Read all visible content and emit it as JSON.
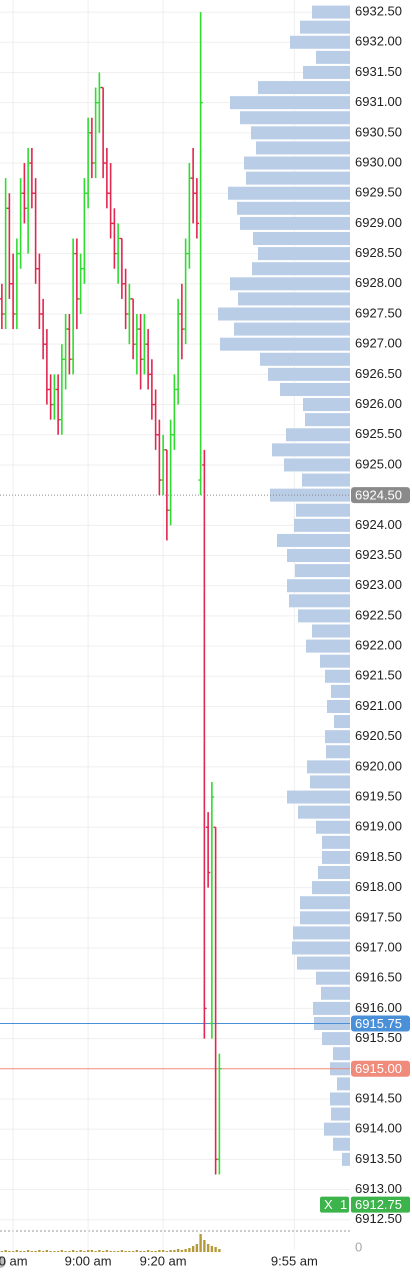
{
  "chart_data": {
    "type": "ohlc",
    "up_color": "#2fdc2f",
    "down_color": "#e2264f",
    "grid": true,
    "xlim": [
      "8:36:30",
      "10:09:50"
    ],
    "xticks": [
      {
        "value": "8:40",
        "label": "0 am"
      },
      {
        "value": "9:00",
        "label": "9:00 am"
      },
      {
        "value": "9:20",
        "label": "9:20 am"
      },
      {
        "value": "9:55",
        "label": "9:55 am"
      }
    ],
    "ylim": [
      6912.33,
      6932.7
    ],
    "yticks": [
      {
        "value": 6932.5,
        "label": "6932.50"
      },
      {
        "value": 6932,
        "label": "6932.00"
      },
      {
        "value": 6931.5,
        "label": "6931.50"
      },
      {
        "value": 6931,
        "label": "6931.00"
      },
      {
        "value": 6930.5,
        "label": "6930.50"
      },
      {
        "value": 6930,
        "label": "6930.00"
      },
      {
        "value": 6929.5,
        "label": "6929.50"
      },
      {
        "value": 6929,
        "label": "6929.00"
      },
      {
        "value": 6928.5,
        "label": "6928.50"
      },
      {
        "value": 6928,
        "label": "6928.00"
      },
      {
        "value": 6927.5,
        "label": "6927.50"
      },
      {
        "value": 6927,
        "label": "6927.00"
      },
      {
        "value": 6926.5,
        "label": "6926.50"
      },
      {
        "value": 6926,
        "label": "6926.00"
      },
      {
        "value": 6925.5,
        "label": "6925.50"
      },
      {
        "value": 6925,
        "label": "6925.00"
      },
      {
        "value": 6924,
        "label": "6924.00"
      },
      {
        "value": 6923.5,
        "label": "6923.50"
      },
      {
        "value": 6923,
        "label": "6923.00"
      },
      {
        "value": 6922.5,
        "label": "6922.50"
      },
      {
        "value": 6922,
        "label": "6922.00"
      },
      {
        "value": 6921.5,
        "label": "6921.50"
      },
      {
        "value": 6921,
        "label": "6921.00"
      },
      {
        "value": 6920.5,
        "label": "6920.50"
      },
      {
        "value": 6920,
        "label": "6920.00"
      },
      {
        "value": 6919.5,
        "label": "6919.50"
      },
      {
        "value": 6919,
        "label": "6919.00"
      },
      {
        "value": 6918.5,
        "label": "6918.50"
      },
      {
        "value": 6918,
        "label": "6918.00"
      },
      {
        "value": 6917.5,
        "label": "6917.50"
      },
      {
        "value": 6917,
        "label": "6917.00"
      },
      {
        "value": 6916.5,
        "label": "6916.50"
      },
      {
        "value": 6916,
        "label": "6916.00"
      },
      {
        "value": 6915.5,
        "label": "6915.50"
      },
      {
        "value": 6914.5,
        "label": "6914.50"
      },
      {
        "value": 6914,
        "label": "6914.00"
      },
      {
        "value": 6913.5,
        "label": "6913.50"
      },
      {
        "value": 6913,
        "label": "6913.00"
      },
      {
        "value": 6912.5,
        "label": "6912.50"
      }
    ],
    "x": [
      "8:37",
      "8:38",
      "8:39",
      "8:40",
      "8:41",
      "8:42",
      "8:43",
      "8:44",
      "8:45",
      "8:46",
      "8:47",
      "8:48",
      "8:49",
      "8:50",
      "8:51",
      "8:52",
      "8:53",
      "8:54",
      "8:55",
      "8:56",
      "8:57",
      "8:58",
      "8:59",
      "9:00",
      "9:01",
      "9:02",
      "9:03",
      "9:04",
      "9:05",
      "9:06",
      "9:07",
      "9:08",
      "9:09",
      "9:10",
      "9:11",
      "9:12",
      "9:13",
      "9:14",
      "9:15",
      "9:16",
      "9:17",
      "9:18",
      "9:19",
      "9:20",
      "9:21",
      "9:22",
      "9:23",
      "9:24",
      "9:25",
      "9:26",
      "9:27",
      "9:28",
      "9:29",
      "9:30",
      "9:31",
      "9:32",
      "9:33",
      "9:34",
      "9:35"
    ],
    "open": [
      6927.75,
      6927.5,
      6929.25,
      6928,
      6927.5,
      6928.5,
      6929.5,
      6929.25,
      6930,
      6929.5,
      6928.25,
      6927.5,
      6927,
      6926.25,
      6926,
      6926.25,
      6925.75,
      6926.75,
      6927.25,
      6926.75,
      6928.5,
      6927.75,
      6928.25,
      6929.5,
      6930.5,
      6930,
      6931,
      6931.25,
      6930,
      6929.5,
      6929,
      6928.5,
      6928.75,
      6928,
      6927.5,
      6927.75,
      6927,
      6927.25,
      6926.75,
      6927,
      6926.5,
      6926,
      6925.5,
      6924.75,
      6925.25,
      6924.25,
      6925.5,
      6926.25,
      6927.5,
      6927.25,
      6928.5,
      6929.75,
      6929.5,
      6924.75,
      6925,
      6919,
      6915.75,
      6919,
      6913.5
    ],
    "high": [
      6928,
      6929.75,
      6929.5,
      6928.5,
      6928.75,
      6929.75,
      6930,
      6930.25,
      6930.25,
      6929.75,
      6928.5,
      6927.75,
      6927.25,
      6926.5,
      6926.5,
      6926.5,
      6927,
      6927.5,
      6927.5,
      6928.75,
      6928.75,
      6928.5,
      6929.75,
      6930.75,
      6930.75,
      6931.25,
      6931.5,
      6931.25,
      6930.25,
      6930,
      6929.25,
      6929,
      6928.75,
      6928.25,
      6928,
      6927.75,
      6927.5,
      6927.5,
      6927.5,
      6927.25,
      6926.75,
      6926.25,
      6925.75,
      6925.5,
      6925.25,
      6925.75,
      6926.5,
      6927.75,
      6928,
      6928.75,
      6930,
      6930.25,
      6929.75,
      6932.5,
      6925.25,
      6919.25,
      6919.75,
      6919,
      6915.25
    ],
    "low": [
      6927.25,
      6927.25,
      6927.75,
      6927.25,
      6927.25,
      6928.25,
      6929,
      6928.5,
      6929.25,
      6928,
      6927.25,
      6926.75,
      6926,
      6925.75,
      6925.75,
      6925.5,
      6925.5,
      6926.25,
      6926.5,
      6926.5,
      6927.25,
      6927.5,
      6928,
      6929.25,
      6929.75,
      6929.75,
      6930.5,
      6929.75,
      6929.25,
      6928.75,
      6928.25,
      6928,
      6927.75,
      6927.25,
      6927,
      6926.75,
      6926.5,
      6926.25,
      6926.5,
      6926.25,
      6925.75,
      6925.25,
      6924.5,
      6924.5,
      6923.75,
      6924,
      6925.25,
      6926,
      6926.75,
      6927,
      6928.25,
      6929,
      6928.75,
      6924.5,
      6915.5,
      6918,
      6915.5,
      6913.25,
      6913.25
    ],
    "close": [
      6927.5,
      6929.25,
      6928,
      6927.5,
      6928.5,
      6929.5,
      6929.25,
      6930,
      6929.5,
      6928.25,
      6927.5,
      6927,
      6926.25,
      6926,
      6926.25,
      6925.75,
      6926.75,
      6927.25,
      6926.75,
      6928.5,
      6927.75,
      6928.25,
      6929.5,
      6930.5,
      6930,
      6931,
      6931.25,
      6930,
      6929.5,
      6929,
      6928.5,
      6928.75,
      6928,
      6927.5,
      6927.75,
      6927,
      6927.25,
      6926.75,
      6927,
      6926.5,
      6926,
      6925.5,
      6924.75,
      6925.25,
      6924.25,
      6925.5,
      6926.25,
      6927.5,
      6927.25,
      6928.5,
      6929.75,
      6929.5,
      6929,
      6931,
      6916,
      6918.25,
      6919.5,
      6913.5,
      6915
    ],
    "volume": {
      "color": "#b59a3c",
      "ylim": [
        0,
        20
      ],
      "yticks": [
        0
      ],
      "values": [
        1,
        2,
        1,
        1,
        2,
        1,
        1,
        2,
        1,
        1,
        2,
        1,
        2,
        1,
        1,
        1,
        2,
        1,
        1,
        2,
        1,
        2,
        1,
        2,
        2,
        1,
        2,
        1,
        2,
        1,
        1,
        1,
        2,
        1,
        1,
        1,
        2,
        1,
        1,
        2,
        1,
        1,
        2,
        2,
        1,
        2,
        2,
        3,
        2,
        3,
        4,
        6,
        8,
        18,
        12,
        8,
        6,
        5,
        3
      ]
    },
    "volume_profile": {
      "color": "#b9cde7",
      "prices": [
        6932.5,
        6932.25,
        6932,
        6931.75,
        6931.5,
        6931.25,
        6931,
        6930.75,
        6930.5,
        6930.25,
        6930,
        6929.75,
        6929.5,
        6929.25,
        6929,
        6928.75,
        6928.5,
        6928.25,
        6928,
        6927.75,
        6927.5,
        6927.25,
        6927,
        6926.75,
        6926.5,
        6926.25,
        6926,
        6925.75,
        6925.5,
        6925.25,
        6925,
        6924.75,
        6924.5,
        6924.25,
        6924,
        6923.75,
        6923.5,
        6923.25,
        6923,
        6922.75,
        6922.5,
        6922.25,
        6922,
        6921.75,
        6921.5,
        6921.25,
        6921,
        6920.75,
        6920.5,
        6920.25,
        6920,
        6919.75,
        6919.5,
        6919.25,
        6919,
        6918.75,
        6918.5,
        6918.25,
        6918,
        6917.75,
        6917.5,
        6917.25,
        6917,
        6916.75,
        6916.5,
        6916.25,
        6916,
        6915.75,
        6915.5,
        6915.25,
        6915,
        6914.75,
        6914.5,
        6914.25,
        6914,
        6913.75,
        6913.5
      ],
      "values": [
        38,
        50,
        60,
        34,
        47,
        92,
        120,
        110,
        99,
        94,
        106,
        104,
        122,
        113,
        110,
        97,
        92,
        98,
        120,
        112,
        132,
        116,
        130,
        90,
        82,
        70,
        47,
        45,
        64,
        78,
        66,
        48,
        80,
        54,
        56,
        73,
        63,
        55,
        63,
        61,
        52,
        38,
        44,
        30,
        25,
        19,
        23,
        16,
        25,
        24,
        43,
        40,
        63,
        52,
        34,
        28,
        28,
        32,
        38,
        50,
        50,
        57,
        58,
        53,
        34,
        29,
        37,
        36,
        28,
        17,
        20,
        13,
        20,
        19,
        26,
        17,
        8
      ]
    },
    "price_lines": [
      {
        "value": 6924.5,
        "label": "6924.50",
        "color": "#8a8a8a",
        "style": "dotted"
      },
      {
        "value": 6915.75,
        "label": "6915.75",
        "color": "#4a90d9",
        "style": "solid"
      },
      {
        "value": 6915,
        "label": "6915.00",
        "color": "#f08a7a",
        "style": "solid"
      }
    ],
    "order": {
      "side": "X",
      "quantity": 1,
      "price": 6912.75,
      "price_label": "6912.75",
      "color": "#3cb44b"
    }
  }
}
